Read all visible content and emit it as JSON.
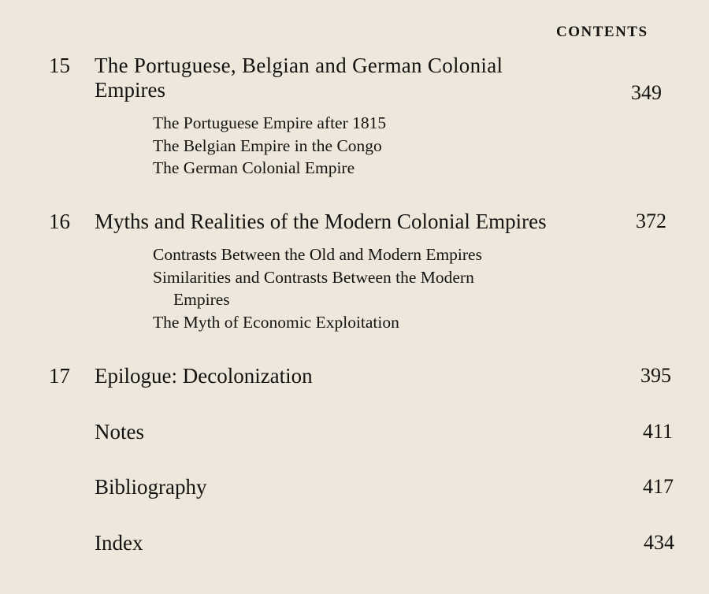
{
  "header": "CONTENTS",
  "chapters": [
    {
      "number": "15",
      "title_line1": "The Portuguese, Belgian and German Colonial",
      "title_line2": "Empires",
      "page": "349",
      "sections": [
        "The Portuguese Empire after 1815",
        "The Belgian Empire in the Congo",
        "The German Colonial Empire"
      ]
    },
    {
      "number": "16",
      "title_line1": "Myths and Realities of the Modern Colonial Empires",
      "page": "372",
      "sections": [
        "Contrasts Between the Old and Modern Empires",
        "Similarities and Contrasts Between the Modern",
        "Empires",
        "The Myth of Economic Exploitation"
      ]
    },
    {
      "number": "17",
      "title_line1": "Epilogue: Decolonization",
      "page": "395"
    }
  ],
  "back_matter": [
    {
      "title": "Notes",
      "page": "411"
    },
    {
      "title": "Bibliography",
      "page": "417"
    },
    {
      "title": "Index",
      "page": "434"
    }
  ]
}
